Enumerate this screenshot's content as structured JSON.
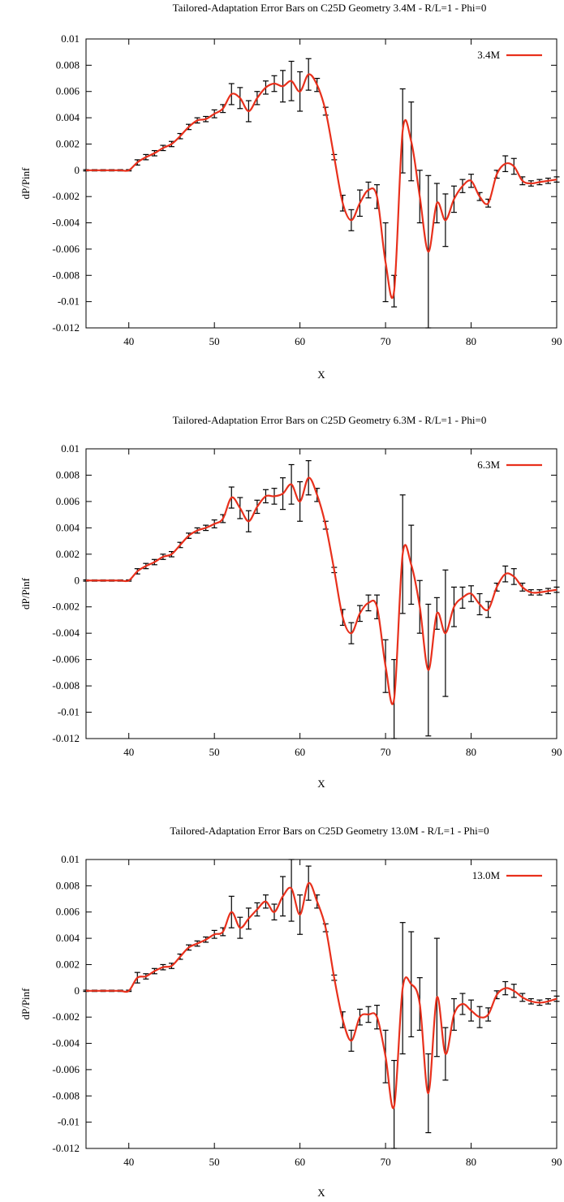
{
  "chart_data": [
    {
      "type": "line",
      "title": "Tailored-Adaptation Error Bars on C25D Geometry 3.4M - R/L=1 - Phi=0",
      "xlabel": "X",
      "ylabel": "dP/Pinf",
      "xlim": [
        35,
        90
      ],
      "ylim": [
        -0.012,
        0.01
      ],
      "xticks": [
        "40",
        "50",
        "60",
        "70",
        "80",
        "90"
      ],
      "yticks": [
        "0.01",
        "0.008",
        "0.006",
        "0.004",
        "0.002",
        "0",
        "-0.002",
        "-0.004",
        "-0.006",
        "-0.008",
        "-0.01",
        "-0.012"
      ],
      "legend_position": "top-right",
      "grid": false,
      "series": [
        {
          "name": "3.4M",
          "color": "#e8301c",
          "x": [
            35,
            36,
            37,
            38,
            39,
            40,
            41,
            42,
            43,
            44,
            45,
            46,
            47,
            48,
            49,
            50,
            51,
            52,
            53,
            54,
            55,
            56,
            57,
            58,
            59,
            60,
            61,
            62,
            63,
            64,
            65,
            66,
            67,
            68,
            69,
            70,
            71,
            72,
            73,
            74,
            75,
            76,
            77,
            78,
            79,
            80,
            81,
            82,
            83,
            84,
            85,
            86,
            87,
            88,
            89,
            90
          ],
          "y": [
            0,
            0,
            0,
            0,
            0,
            0,
            0.0006,
            0.001,
            0.0013,
            0.0017,
            0.002,
            0.0026,
            0.0033,
            0.0038,
            0.0039,
            0.0043,
            0.0047,
            0.0058,
            0.0055,
            0.0045,
            0.0055,
            0.0063,
            0.0066,
            0.0064,
            0.0068,
            0.006,
            0.0073,
            0.0065,
            0.0045,
            0.001,
            -0.0025,
            -0.0038,
            -0.0025,
            -0.0015,
            -0.002,
            -0.007,
            -0.0092,
            0.003,
            0.0022,
            -0.002,
            -0.0062,
            -0.0025,
            -0.0038,
            -0.0022,
            -0.0012,
            -0.0008,
            -0.002,
            -0.0025,
            -0.0003,
            0.0005,
            0.0003,
            -0.0008,
            -0.001,
            -0.0009,
            -0.0008,
            -0.0007
          ],
          "err": [
            5e-05,
            5e-05,
            5e-05,
            5e-05,
            5e-05,
            5e-05,
            0.0002,
            0.0002,
            0.0002,
            0.0002,
            0.0002,
            0.0002,
            0.0002,
            0.0002,
            0.0002,
            0.0003,
            0.0003,
            0.0008,
            0.0008,
            0.0008,
            0.0005,
            0.0005,
            0.0006,
            0.0012,
            0.0015,
            0.0015,
            0.0012,
            0.0005,
            0.0003,
            0.0002,
            0.0006,
            0.0008,
            0.001,
            0.0006,
            0.0009,
            0.003,
            0.0012,
            0.0032,
            0.003,
            0.002,
            0.0058,
            0.0015,
            0.002,
            0.001,
            0.0005,
            0.0005,
            0.0003,
            0.0003,
            0.0003,
            0.0006,
            0.0006,
            0.0003,
            0.0002,
            0.0002,
            0.0002,
            0.0002
          ]
        }
      ]
    },
    {
      "type": "line",
      "title": "Tailored-Adaptation Error Bars on C25D Geometry 6.3M - R/L=1 - Phi=0",
      "xlabel": "X",
      "ylabel": "dP/Pinf",
      "xlim": [
        35,
        90
      ],
      "ylim": [
        -0.012,
        0.01
      ],
      "xticks": [
        "40",
        "50",
        "60",
        "70",
        "80",
        "90"
      ],
      "yticks": [
        "0.01",
        "0.008",
        "0.006",
        "0.004",
        "0.002",
        "0",
        "-0.002",
        "-0.004",
        "-0.006",
        "-0.008",
        "-0.01",
        "-0.012"
      ],
      "legend_position": "top-right",
      "grid": false,
      "series": [
        {
          "name": "6.3M",
          "color": "#e8301c",
          "x": [
            35,
            36,
            37,
            38,
            39,
            40,
            41,
            42,
            43,
            44,
            45,
            46,
            47,
            48,
            49,
            50,
            51,
            52,
            53,
            54,
            55,
            56,
            57,
            58,
            59,
            60,
            61,
            62,
            63,
            64,
            65,
            66,
            67,
            68,
            69,
            70,
            71,
            72,
            73,
            74,
            75,
            76,
            77,
            78,
            79,
            80,
            81,
            82,
            83,
            84,
            85,
            86,
            87,
            88,
            89,
            90
          ],
          "y": [
            0,
            0,
            0,
            0,
            0,
            0,
            0.0007,
            0.0011,
            0.0014,
            0.0018,
            0.002,
            0.0027,
            0.0034,
            0.0038,
            0.004,
            0.0043,
            0.0047,
            0.0063,
            0.0055,
            0.0045,
            0.0056,
            0.0064,
            0.0064,
            0.0066,
            0.0073,
            0.006,
            0.0078,
            0.0065,
            0.0042,
            0.0008,
            -0.0028,
            -0.004,
            -0.0025,
            -0.0017,
            -0.002,
            -0.0065,
            -0.009,
            0.002,
            0.0012,
            -0.002,
            -0.0068,
            -0.0025,
            -0.004,
            -0.002,
            -0.0013,
            -0.001,
            -0.0018,
            -0.0022,
            -0.0005,
            0.0005,
            0.0003,
            -0.0005,
            -0.0009,
            -0.0009,
            -0.0008,
            -0.0007
          ],
          "err": [
            5e-05,
            5e-05,
            5e-05,
            5e-05,
            5e-05,
            5e-05,
            0.0002,
            0.0002,
            0.0002,
            0.0002,
            0.0002,
            0.0002,
            0.0002,
            0.0002,
            0.0002,
            0.0003,
            0.0003,
            0.0008,
            0.0008,
            0.0008,
            0.0005,
            0.0005,
            0.0006,
            0.0012,
            0.0015,
            0.0015,
            0.0013,
            0.0005,
            0.0003,
            0.0002,
            0.0006,
            0.0008,
            0.0006,
            0.0006,
            0.0009,
            0.002,
            0.003,
            0.0045,
            0.003,
            0.002,
            0.005,
            0.0012,
            0.0048,
            0.0015,
            0.0008,
            0.0006,
            0.0008,
            0.0006,
            0.0003,
            0.0006,
            0.0006,
            0.0003,
            0.0002,
            0.0002,
            0.0002,
            0.0002
          ]
        }
      ]
    },
    {
      "type": "line",
      "title": "Tailored-Adaptation Error Bars on C25D Geometry 13.0M - R/L=1 - Phi=0",
      "xlabel": "X",
      "ylabel": "dP/Pinf",
      "xlim": [
        35,
        90
      ],
      "ylim": [
        -0.012,
        0.01
      ],
      "xticks": [
        "40",
        "50",
        "60",
        "70",
        "80",
        "90"
      ],
      "yticks": [
        "0.01",
        "0.008",
        "0.006",
        "0.004",
        "0.002",
        "0",
        "-0.002",
        "-0.004",
        "-0.006",
        "-0.008",
        "-0.01",
        "-0.012"
      ],
      "legend_position": "top-right",
      "grid": false,
      "series": [
        {
          "name": "13.0M",
          "color": "#e8301c",
          "x": [
            35,
            36,
            37,
            38,
            39,
            40,
            41,
            42,
            43,
            44,
            45,
            46,
            47,
            48,
            49,
            50,
            51,
            52,
            53,
            54,
            55,
            56,
            57,
            58,
            59,
            60,
            61,
            62,
            63,
            64,
            65,
            66,
            67,
            68,
            69,
            70,
            71,
            72,
            73,
            74,
            75,
            76,
            77,
            78,
            79,
            80,
            81,
            82,
            83,
            84,
            85,
            86,
            87,
            88,
            89,
            90
          ],
          "y": [
            0,
            0,
            0,
            0,
            0,
            0,
            0.001,
            0.0011,
            0.0015,
            0.0018,
            0.0019,
            0.0026,
            0.0033,
            0.0036,
            0.0039,
            0.0043,
            0.0045,
            0.006,
            0.0048,
            0.0055,
            0.0062,
            0.0068,
            0.006,
            0.0072,
            0.0078,
            0.0058,
            0.0082,
            0.0068,
            0.0048,
            0.001,
            -0.0022,
            -0.0038,
            -0.002,
            -0.0018,
            -0.002,
            -0.005,
            -0.0088,
            0.0002,
            0.0005,
            -0.001,
            -0.0078,
            -0.0005,
            -0.0048,
            -0.0018,
            -0.001,
            -0.0015,
            -0.002,
            -0.0018,
            -0.0003,
            0.0002,
            0,
            -0.0005,
            -0.0008,
            -0.0009,
            -0.0008,
            -0.0006
          ],
          "err": [
            5e-05,
            5e-05,
            5e-05,
            5e-05,
            5e-05,
            5e-05,
            0.0004,
            0.0002,
            0.0002,
            0.0002,
            0.0002,
            0.0002,
            0.0002,
            0.0002,
            0.0002,
            0.0003,
            0.0003,
            0.0012,
            0.0008,
            0.0008,
            0.0005,
            0.0005,
            0.0006,
            0.0015,
            0.0025,
            0.0015,
            0.0013,
            0.0005,
            0.0003,
            0.0002,
            0.0006,
            0.0008,
            0.0006,
            0.0006,
            0.0009,
            0.002,
            0.0035,
            0.005,
            0.004,
            0.002,
            0.003,
            0.0045,
            0.002,
            0.0012,
            0.0008,
            0.0008,
            0.0008,
            0.0005,
            0.0003,
            0.0005,
            0.0005,
            0.0003,
            0.0002,
            0.0002,
            0.0002,
            0.0002
          ]
        }
      ]
    }
  ]
}
